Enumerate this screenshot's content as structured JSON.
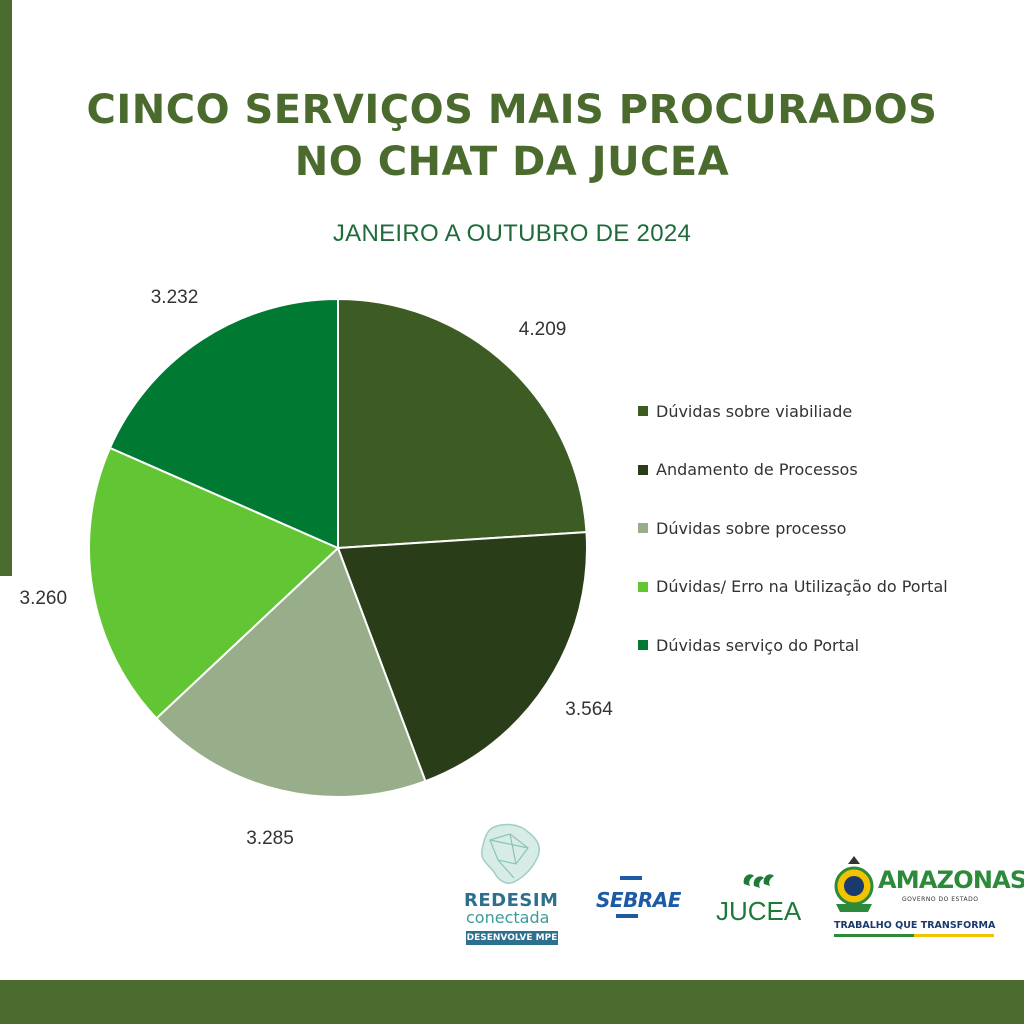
{
  "header": {
    "title_line1": "CINCO SERVIÇOS MAIS PROCURADOS",
    "title_line2": "NO CHAT DA JUCEA",
    "subtitle": "JANEIRO A OUTUBRO DE 2024"
  },
  "colors": {
    "brand_green": "#4b6b2e",
    "subtitle_green": "#1f6b3a"
  },
  "chart_data": {
    "type": "pie",
    "title": "CINCO SERVIÇOS MAIS PROCURADOS NO CHAT DA JUCEA",
    "subtitle": "JANEIRO A OUTUBRO DE 2024",
    "legend_position": "right",
    "categories": [
      "Dúvidas sobre viabiliade",
      "Andamento de Processos",
      "Dúvidas sobre processo",
      "Dúvidas/ Erro na Utilização do Portal",
      "Dúvidas serviço do Portal"
    ],
    "values": [
      4209,
      3564,
      3285,
      3260,
      3232
    ],
    "value_labels": [
      "4.209",
      "3.564",
      "3.285",
      "3.260",
      "3.232"
    ],
    "colors": [
      "#3d5c24",
      "#283d18",
      "#98ae8a",
      "#62c533",
      "#007a33"
    ]
  },
  "logos": {
    "redesim": {
      "name": "REDESIM",
      "sub": "conectada",
      "band": "DESENVOLVE MPE"
    },
    "sebrae": {
      "name": "SEBRAE"
    },
    "jucea": {
      "name": "JUCEA"
    },
    "amazonas": {
      "name": "AMAZONAS",
      "gov": "GOVERNO DO ESTADO",
      "slogan": "TRABALHO QUE TRANSFORMA"
    }
  }
}
